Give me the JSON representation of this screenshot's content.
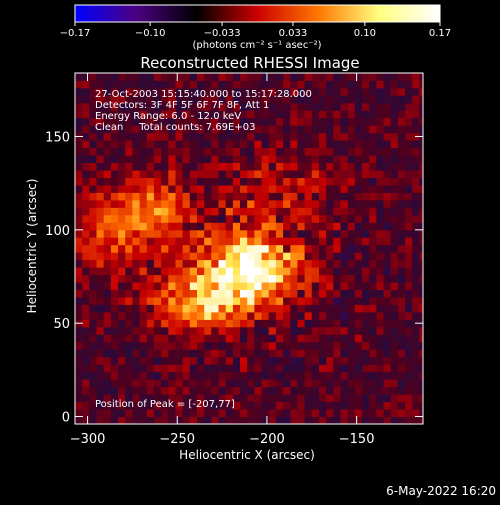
{
  "chart_data": {
    "type": "heatmap",
    "title": "Reconstructed RHESSI Image",
    "xlabel": "Heliocentric X (arcsec)",
    "ylabel": "Heliocentric Y (arcsec)",
    "xlim": [
      -307,
      -113
    ],
    "ylim": [
      -4,
      184
    ],
    "x_ticks": [
      -300,
      -250,
      -200,
      -150
    ],
    "y_ticks": [
      0,
      50,
      100,
      150
    ],
    "x_tick_labels": [
      "−300",
      "−250",
      "−200",
      "−150"
    ],
    "y_tick_labels": [
      "0",
      "50",
      "100",
      "150"
    ],
    "colorbar": {
      "range": [
        -0.17,
        0.17
      ],
      "ticks": [
        -0.17,
        -0.1,
        -0.033,
        0.033,
        0.1,
        0.17
      ],
      "tick_labels": [
        "−0.17",
        "−0.10",
        "−0.033",
        "0.033",
        "0.10",
        "0.17"
      ],
      "unit_label": "(photons cm⁻² s⁻¹ asec⁻²)",
      "colors": [
        "#0000ff",
        "#4b0082",
        "#000000",
        "#cc0000",
        "#ff7700",
        "#ffff80",
        "#ffffff"
      ]
    },
    "annotations": [
      "27-Oct-2003 15:15:40.000 to 15:17:28.000",
      "Detectors: 3F 4F 5F 6F 7F 8F, Att 1",
      "Energy Range: 6.0 - 12.0 keV",
      "Clean     Total counts: 7.69E+03",
      "Position of Peak = [-207,77]"
    ],
    "peak": {
      "x": -207,
      "y": 77
    },
    "sources": [
      {
        "x": -210,
        "y": 77,
        "amplitude": 0.17
      },
      {
        "x": -240,
        "y": 60,
        "amplitude": 0.1
      },
      {
        "x": -265,
        "y": 110,
        "amplitude": 0.07
      },
      {
        "x": -195,
        "y": 120,
        "amplitude": 0.05
      },
      {
        "x": -290,
        "y": 95,
        "amplitude": 0.05
      }
    ]
  },
  "footer": {
    "date": "6-May-2022 16:20"
  }
}
